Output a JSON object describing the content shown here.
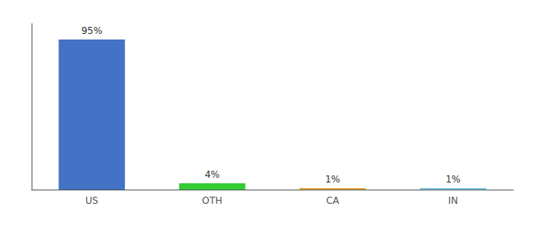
{
  "chart_data": {
    "type": "bar",
    "categories": [
      "US",
      "OTH",
      "CA",
      "IN"
    ],
    "values": [
      95,
      4,
      1,
      1
    ],
    "value_labels": [
      "95%",
      "4%",
      "1%",
      "1%"
    ],
    "data_labels": true,
    "colors": [
      "#4472c4",
      "#33cc33",
      "#e8a838",
      "#7ec8e3"
    ],
    "ylim": [
      0,
      105
    ],
    "grid": false,
    "tick_labels": "x"
  }
}
